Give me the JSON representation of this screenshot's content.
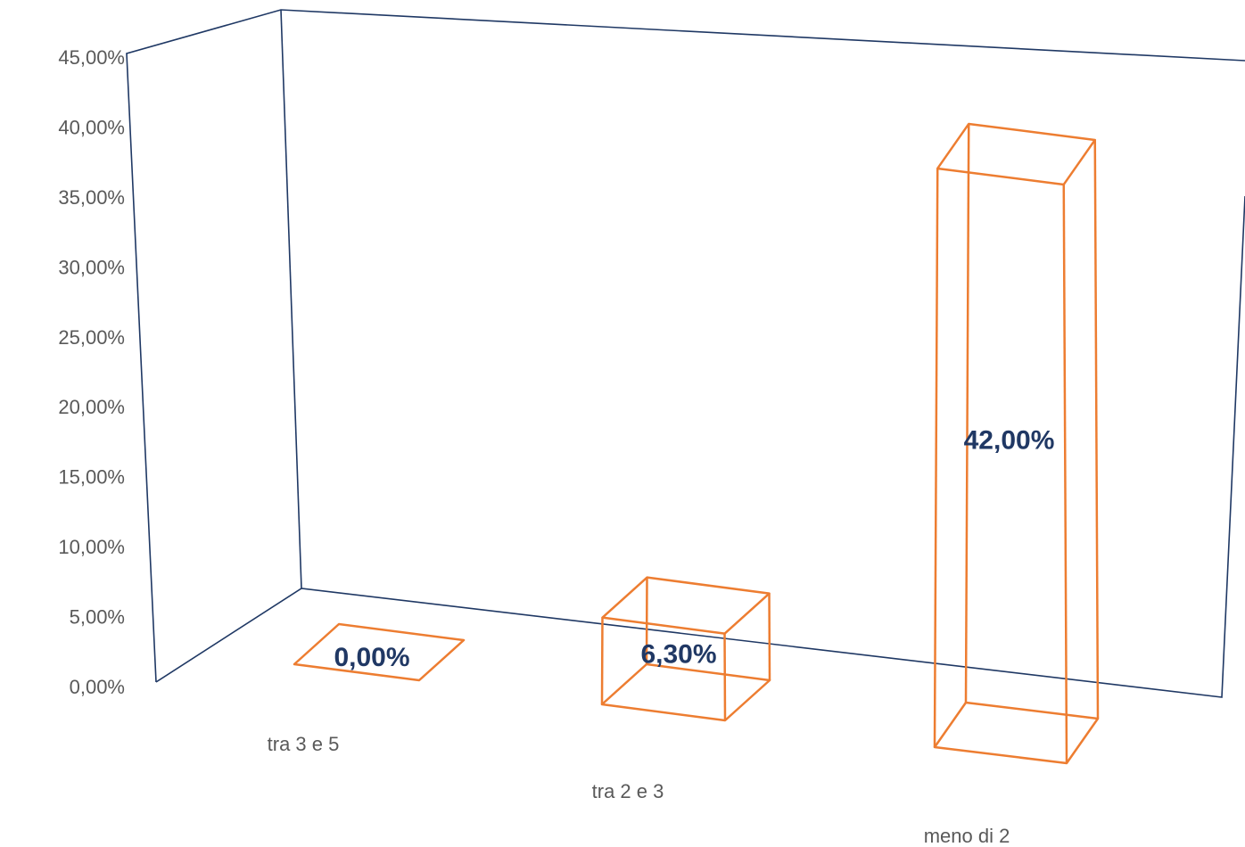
{
  "chart_data": {
    "type": "bar",
    "style": "3d-wireframe",
    "categories": [
      "tra 3 e 5",
      "tra 2 e 3",
      "meno di 2"
    ],
    "values": [
      0.0,
      6.3,
      42.0
    ],
    "data_labels": [
      "0,00%",
      "6,30%",
      "42,00%"
    ],
    "ylim": [
      0,
      45
    ],
    "yticks": [
      0,
      5,
      10,
      15,
      20,
      25,
      30,
      35,
      40,
      45
    ],
    "ytick_labels": [
      "0,00%",
      "5,00%",
      "10,00%",
      "15,00%",
      "20,00%",
      "25,00%",
      "30,00%",
      "35,00%",
      "40,00%",
      "45,00%"
    ],
    "title": "",
    "xlabel": "",
    "ylabel": "",
    "legend": "none",
    "colors": {
      "axes": "#1f3864",
      "bars": "#ed7d31",
      "labels": "#203864",
      "ticks": "#595959"
    }
  }
}
